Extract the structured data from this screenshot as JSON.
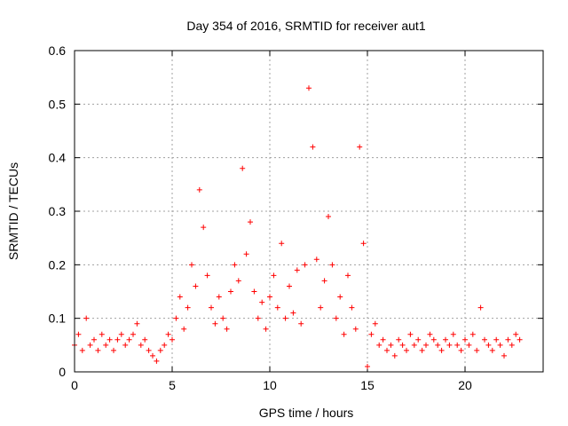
{
  "chart_data": {
    "type": "scatter",
    "title": "Day 354 of 2016, SRMTID for receiver aut1",
    "xlabel": "GPS time / hours",
    "ylabel": "SRMTID / TECUs",
    "xlim": [
      0,
      24
    ],
    "ylim": [
      0,
      0.6
    ],
    "xticks": [
      0,
      5,
      10,
      15,
      20
    ],
    "xtick_labels": [
      "0",
      "5",
      "10",
      "15",
      "20"
    ],
    "yticks": [
      0,
      0.1,
      0.2,
      0.3,
      0.4,
      0.5,
      0.6
    ],
    "ytick_labels": [
      "0",
      "0.1",
      "0.2",
      "0.3",
      "0.4",
      "0.5",
      "0.6"
    ],
    "grid": true,
    "legend": "none",
    "series": [
      {
        "name": "SRMTID",
        "color": "#ff0000",
        "marker": "plus",
        "x": [
          0.0,
          0.2,
          0.4,
          0.6,
          0.8,
          1.0,
          1.2,
          1.4,
          1.6,
          1.8,
          2.0,
          2.2,
          2.4,
          2.6,
          2.8,
          3.0,
          3.2,
          3.4,
          3.6,
          3.8,
          4.0,
          4.2,
          4.4,
          4.6,
          4.8,
          5.0,
          5.2,
          5.4,
          5.6,
          5.8,
          6.0,
          6.2,
          6.4,
          6.6,
          6.8,
          7.0,
          7.2,
          7.4,
          7.6,
          7.8,
          8.0,
          8.2,
          8.4,
          8.6,
          8.8,
          9.0,
          9.2,
          9.4,
          9.6,
          9.8,
          10.0,
          10.2,
          10.4,
          10.6,
          10.8,
          11.0,
          11.2,
          11.4,
          11.6,
          11.8,
          12.0,
          12.2,
          12.4,
          12.6,
          12.8,
          13.0,
          13.2,
          13.4,
          13.6,
          13.8,
          14.0,
          14.2,
          14.4,
          14.6,
          14.8,
          15.0,
          15.2,
          15.4,
          15.6,
          15.8,
          16.0,
          16.2,
          16.4,
          16.6,
          16.8,
          17.0,
          17.2,
          17.4,
          17.6,
          17.8,
          18.0,
          18.2,
          18.4,
          18.6,
          18.8,
          19.0,
          19.2,
          19.4,
          19.6,
          19.8,
          20.0,
          20.2,
          20.4,
          20.6,
          20.8,
          21.0,
          21.2,
          21.4,
          21.6,
          21.8,
          22.0,
          22.2,
          22.4,
          22.6,
          22.8
        ],
        "y": [
          0.05,
          0.07,
          0.04,
          0.1,
          0.05,
          0.06,
          0.04,
          0.07,
          0.05,
          0.06,
          0.04,
          0.06,
          0.07,
          0.05,
          0.06,
          0.07,
          0.09,
          0.05,
          0.06,
          0.04,
          0.03,
          0.02,
          0.04,
          0.05,
          0.07,
          0.06,
          0.1,
          0.14,
          0.08,
          0.12,
          0.2,
          0.16,
          0.34,
          0.27,
          0.18,
          0.12,
          0.09,
          0.14,
          0.1,
          0.08,
          0.15,
          0.2,
          0.17,
          0.38,
          0.22,
          0.28,
          0.15,
          0.1,
          0.13,
          0.08,
          0.14,
          0.18,
          0.12,
          0.24,
          0.1,
          0.16,
          0.11,
          0.19,
          0.09,
          0.2,
          0.53,
          0.42,
          0.21,
          0.12,
          0.17,
          0.29,
          0.2,
          0.1,
          0.14,
          0.07,
          0.18,
          0.12,
          0.08,
          0.42,
          0.24,
          0.01,
          0.07,
          0.09,
          0.05,
          0.06,
          0.04,
          0.05,
          0.03,
          0.06,
          0.05,
          0.04,
          0.07,
          0.05,
          0.06,
          0.04,
          0.05,
          0.07,
          0.06,
          0.05,
          0.04,
          0.06,
          0.05,
          0.07,
          0.05,
          0.04,
          0.06,
          0.05,
          0.07,
          0.04,
          0.12,
          0.06,
          0.05,
          0.04,
          0.06,
          0.05,
          0.03,
          0.06,
          0.05,
          0.07,
          0.06
        ]
      }
    ]
  }
}
